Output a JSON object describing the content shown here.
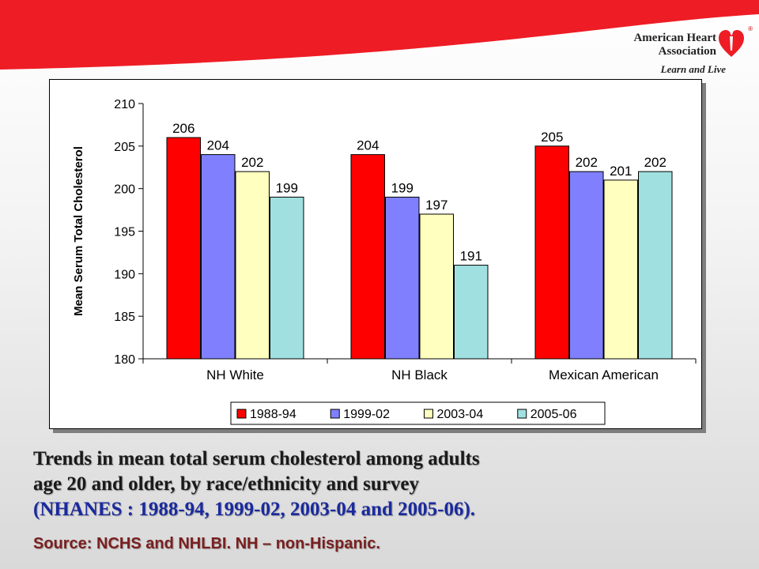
{
  "branding": {
    "org_line1": "American Heart",
    "org_line2": "Association",
    "tagline": "Learn and Live",
    "brand_red": "#ee1c25"
  },
  "caption": {
    "line1": "Trends in mean total serum cholesterol among adults",
    "line2": "age 20 and older, by race/ethnicity and survey",
    "line3": "(NHANES : 1988-94, 1999-02, 2003-04 and 2005-06).",
    "source": "Source: NCHS and NHLBI.  NH – non-Hispanic."
  },
  "chart_data": {
    "type": "bar",
    "title": "",
    "xlabel": "",
    "ylabel": "Mean Serum Total Cholesterol",
    "ylim": [
      180,
      210
    ],
    "yticks": [
      180,
      185,
      190,
      195,
      200,
      205,
      210
    ],
    "grid": false,
    "legend_position": "bottom",
    "categories": [
      "NH White",
      "NH Black",
      "Mexican American"
    ],
    "series": [
      {
        "name": "1988-94",
        "color": "#ff0000",
        "values": [
          206,
          204,
          205
        ]
      },
      {
        "name": "1999-02",
        "color": "#8080ff",
        "values": [
          204,
          199,
          202
        ]
      },
      {
        "name": "2003-04",
        "color": "#ffffc0",
        "values": [
          202,
          197,
          201
        ]
      },
      {
        "name": "2005-06",
        "color": "#a0e0e0",
        "values": [
          199,
          191,
          202
        ]
      }
    ]
  }
}
